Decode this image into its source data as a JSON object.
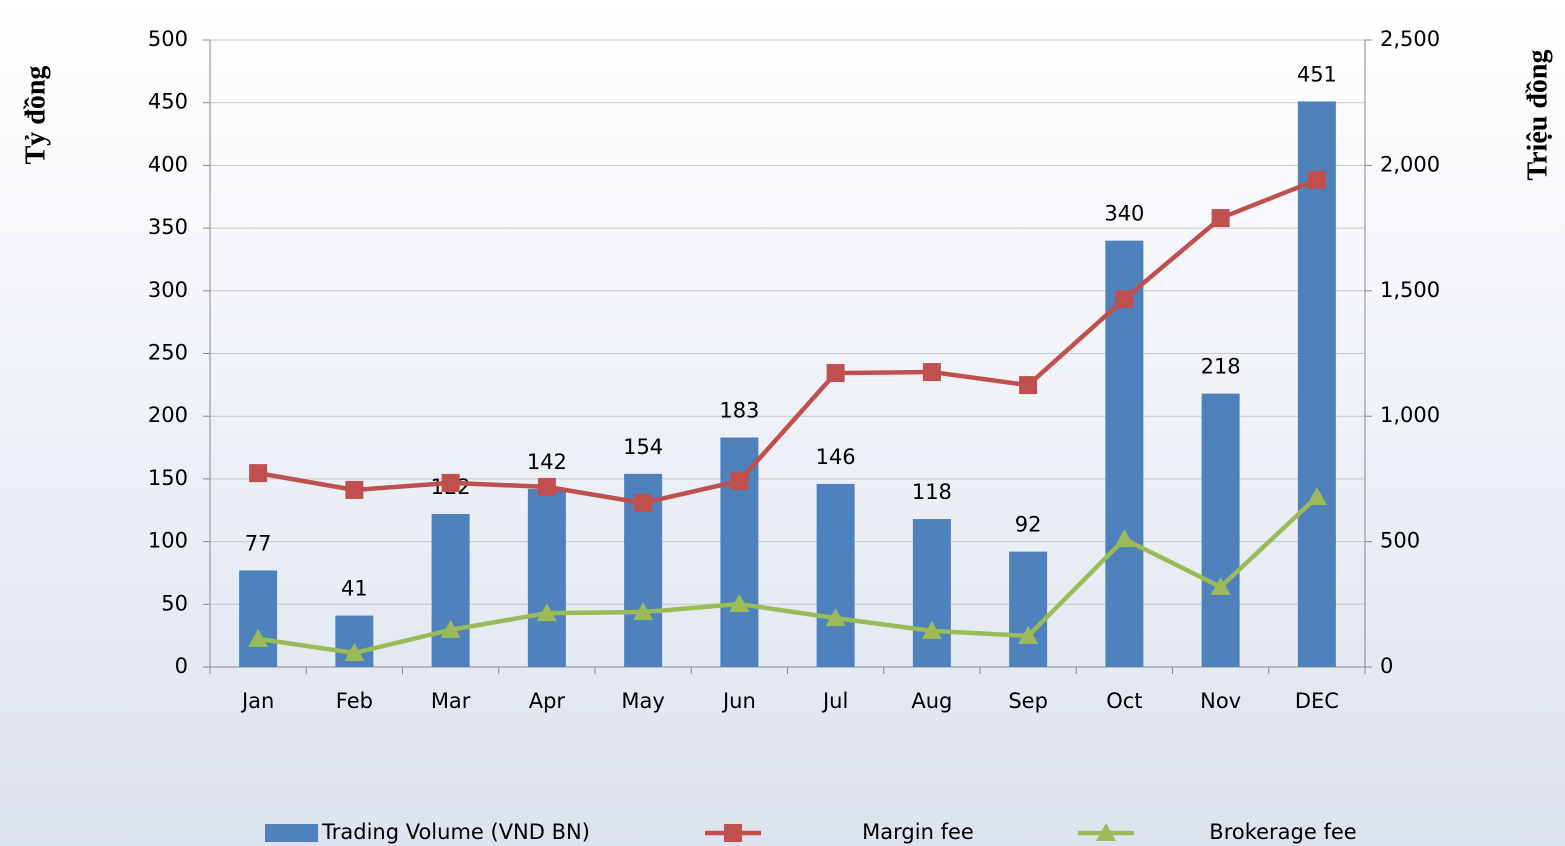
{
  "chart_data": {
    "type": "bar",
    "categories": [
      "Jan",
      "Feb",
      "Mar",
      "Apr",
      "May",
      "Jun",
      "Jul",
      "Aug",
      "Sep",
      "Oct",
      "Nov",
      "DEC"
    ],
    "series": [
      {
        "name": "Trading Volume (VND BN)",
        "type": "bar",
        "color": "#4f81bd",
        "values": [
          77,
          41,
          122,
          142,
          154,
          183,
          146,
          118,
          92,
          340,
          218,
          451
        ]
      },
      {
        "name": "Margin fee",
        "type": "line",
        "axis": "y2",
        "marker": "square",
        "color": "#c0504d",
        "values": [
          773,
          706,
          734,
          718,
          654,
          742,
          1172,
          1176,
          1124,
          1467,
          1790,
          1942
        ]
      },
      {
        "name": "Brokerage fee",
        "type": "line",
        "axis": "y2",
        "marker": "triangle",
        "color": "#9bbb59",
        "values": [
          112,
          56,
          148,
          215,
          219,
          251,
          195,
          144,
          124,
          510,
          319,
          678
        ]
      }
    ],
    "y_label": "Tỷ đồng",
    "y2_label": "Triệu đồng",
    "ylim": [
      0,
      500
    ],
    "yticks": [
      0,
      50,
      100,
      150,
      200,
      250,
      300,
      350,
      400,
      450,
      500
    ],
    "y2lim": [
      0,
      2500
    ],
    "y2ticks": [
      0,
      500,
      {
        "value": 1000,
        "label": "1,000"
      },
      {
        "value": 1500,
        "label": "1,500"
      },
      {
        "value": 2000,
        "label": "2,000"
      },
      {
        "value": 2500,
        "label": "2,500"
      }
    ],
    "grid": true,
    "legend": "bottom",
    "data_labels": true
  }
}
